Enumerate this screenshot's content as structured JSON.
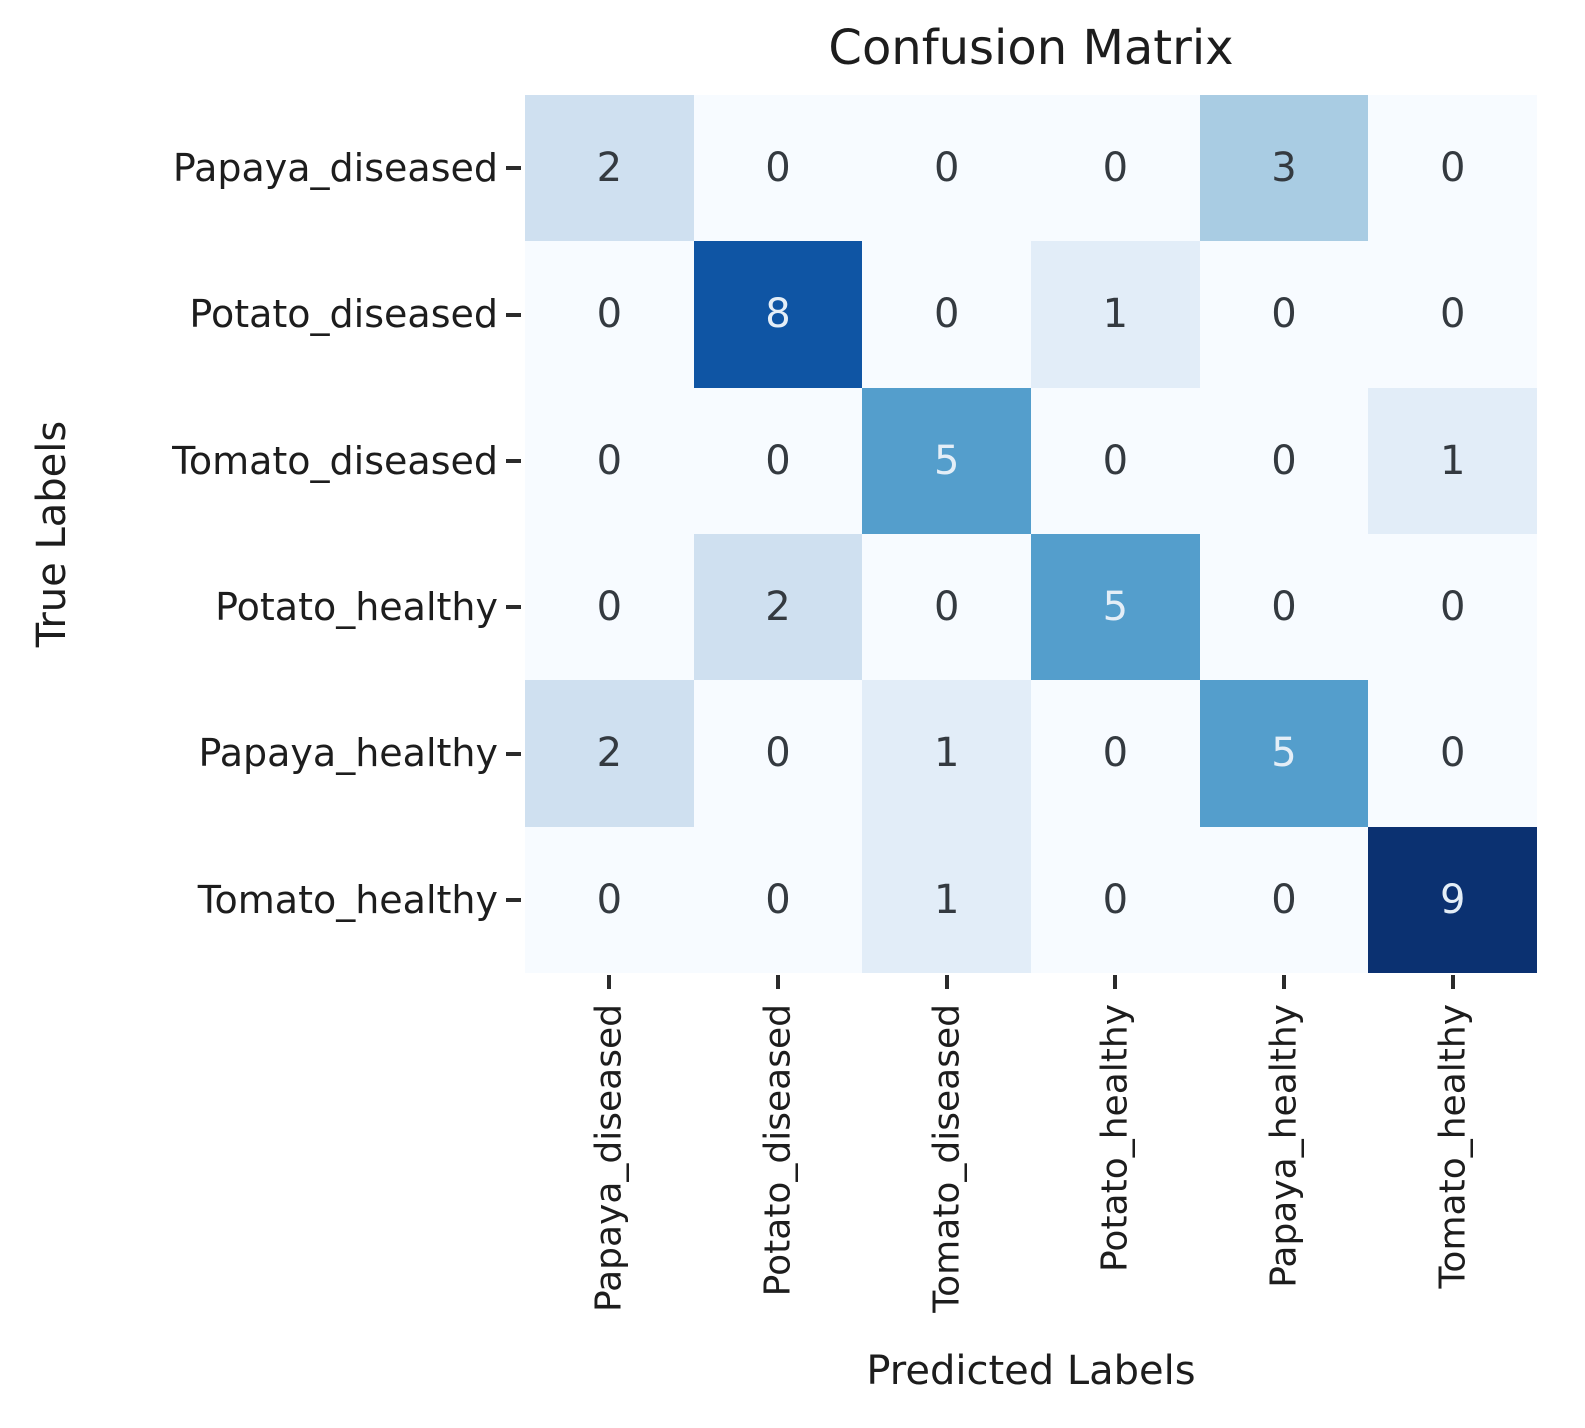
{
  "chart_data": {
    "type": "heatmap",
    "title": "Confusion Matrix",
    "xlabel": "Predicted Labels",
    "ylabel": "True Labels",
    "x_tick_labels": [
      "Papaya_diseased",
      "Potato_diseased",
      "Tomato_diseased",
      "Potato_healthy",
      "Papaya_healthy",
      "Tomato_healthy"
    ],
    "y_tick_labels": [
      "Papaya_diseased",
      "Potato_diseased",
      "Tomato_diseased",
      "Potato_healthy",
      "Papaya_healthy",
      "Tomato_healthy"
    ],
    "matrix": [
      [
        2,
        0,
        0,
        0,
        3,
        0
      ],
      [
        0,
        8,
        0,
        1,
        0,
        0
      ],
      [
        0,
        0,
        5,
        0,
        0,
        1
      ],
      [
        0,
        2,
        0,
        5,
        0,
        0
      ],
      [
        2,
        0,
        1,
        0,
        5,
        0
      ],
      [
        0,
        0,
        1,
        0,
        0,
        9
      ]
    ],
    "colormap_name": "Blues",
    "vmin": 0,
    "vmax": 9,
    "light_text_threshold": 4.5,
    "legend": "none",
    "grid": "off"
  },
  "colors": {
    "background": "#ffffff",
    "value_to_color": {
      "0": "#f7fbff",
      "1": "#e2edf8",
      "2": "#cfe0f0",
      "3": "#a9cce3",
      "5": "#549ecc",
      "8": "#0f55a4",
      "9": "#0b3171"
    },
    "annot_dark_text": "#343a40",
    "annot_light_text": "#e4eef7",
    "label_text": "#1d1d1d",
    "tick_mark": "#2b2b2b"
  }
}
